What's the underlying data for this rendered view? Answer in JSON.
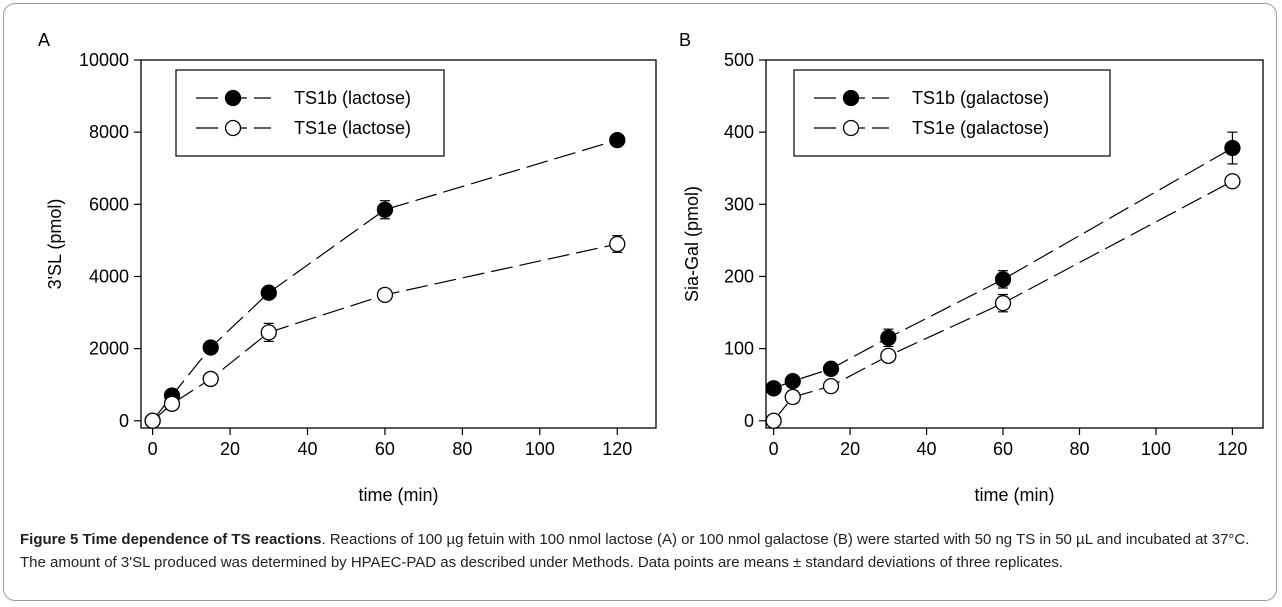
{
  "figure": {
    "caption_title": "Figure 5 Time dependence of TS reactions",
    "caption_text": ". Reactions of 100 µg fetuin with 100 nmol lactose (A) or 100 nmol galactose (B) were started with 50 ng TS in 50 µL and incubated at 37°C. The amount of 3'SL produced was determined by HPAEC-PAD as described under Methods. Data points are means ± standard deviations of three replicates."
  },
  "chart_data": [
    {
      "panel": "A",
      "type": "line",
      "xlabel": "time (min)",
      "ylabel": "3'SL (pmol)",
      "xlim": [
        -3,
        130
      ],
      "ylim": [
        -200,
        10000
      ],
      "xticks": [
        0,
        20,
        40,
        60,
        80,
        100,
        120
      ],
      "yticks": [
        0,
        2000,
        4000,
        6000,
        8000,
        10000
      ],
      "legend_position": "top-left",
      "x": [
        0,
        5,
        15,
        30,
        60,
        120
      ],
      "series": [
        {
          "name": "TS1b (lactose)",
          "marker": "filled-circle",
          "values": [
            0,
            700,
            2030,
            3550,
            5850,
            7780
          ],
          "errors": [
            0,
            0,
            0,
            0,
            250,
            0
          ]
        },
        {
          "name": "TS1e (lactose)",
          "marker": "open-circle",
          "values": [
            0,
            470,
            1160,
            2450,
            3490,
            4900
          ],
          "errors": [
            0,
            0,
            0,
            250,
            0,
            230
          ]
        }
      ]
    },
    {
      "panel": "B",
      "type": "line",
      "xlabel": "time (min)",
      "ylabel": "Sia-Gal (pmol)",
      "xlim": [
        -2,
        128
      ],
      "ylim": [
        -10,
        500
      ],
      "xticks": [
        0,
        20,
        40,
        60,
        80,
        100,
        120
      ],
      "yticks": [
        0,
        100,
        200,
        300,
        400,
        500
      ],
      "legend_position": "top-left",
      "x": [
        0,
        5,
        15,
        30,
        60,
        120
      ],
      "series": [
        {
          "name": "TS1b (galactose)",
          "marker": "filled-circle",
          "values": [
            45,
            55,
            72,
            115,
            196,
            378
          ],
          "errors": [
            0,
            6,
            0,
            12,
            12,
            22
          ]
        },
        {
          "name": "TS1e (galactose)",
          "marker": "open-circle",
          "values": [
            0,
            33,
            48,
            90,
            163,
            332
          ],
          "errors": [
            0,
            9,
            6,
            0,
            12,
            0
          ]
        }
      ]
    }
  ]
}
